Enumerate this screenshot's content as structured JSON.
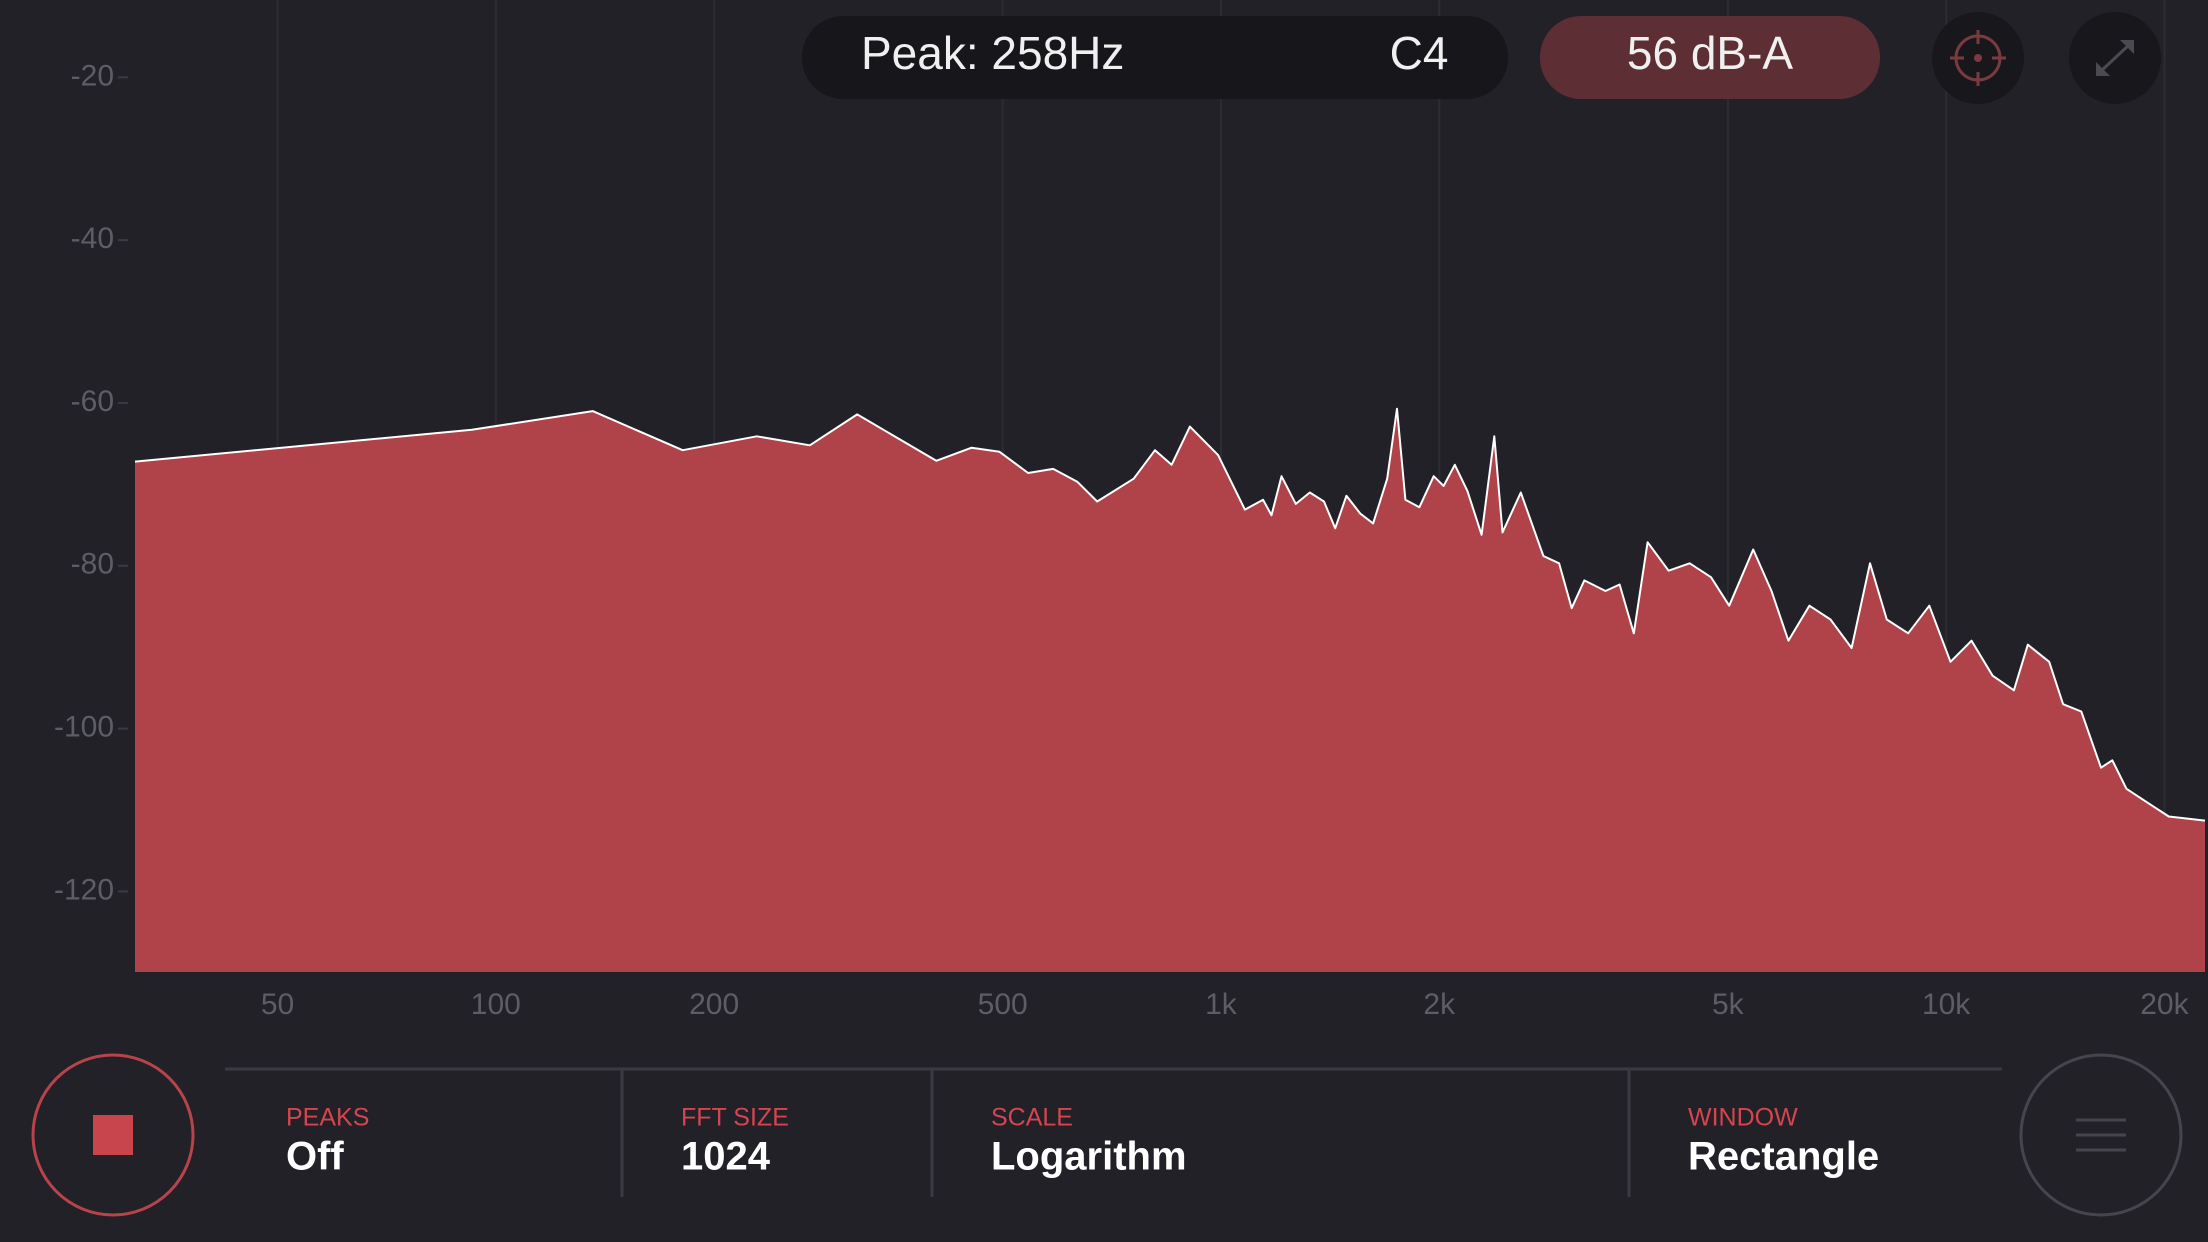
{
  "header": {
    "peak": "Peak: 258Hz",
    "note": "C4",
    "level": "56 dB-A"
  },
  "chart_data": {
    "type": "area",
    "x": [
      31.8,
      92.7,
      136,
      181,
      229,
      271,
      315,
      405,
      453,
      495,
      542,
      587,
      634,
      675,
      758,
      811,
      855,
      906,
      991,
      1079,
      1143,
      1174,
      1212,
      1268,
      1326,
      1387,
      1437,
      1489,
      1557,
      1621,
      1695,
      1749,
      1796,
      1878,
      1965,
      2028,
      2101,
      2187,
      2288,
      2382,
      2445,
      2591,
      2784,
      2926,
      3045,
      3170,
      3391,
      3546,
      3709,
      3875,
      4143,
      4430,
      4740,
      5022,
      5419,
      5743,
      6061,
      6479,
      6928,
      7408,
      7852,
      8283,
      8866,
      9479,
      10140,
      10840,
      11590,
      12400,
      12960,
      13870,
      14500,
      15360,
      15840,
      16350,
      16950,
      17730,
      18960,
      20280,
      22750
    ],
    "values": [
      -67.2,
      -63.3,
      -61.0,
      -65.8,
      -64.1,
      -65.2,
      -61.4,
      -67.1,
      -65.5,
      -66.0,
      -68.6,
      -68.1,
      -69.7,
      -72.1,
      -69.3,
      -65.8,
      -67.6,
      -62.9,
      -66.4,
      -73.1,
      -71.9,
      -73.8,
      -69.0,
      -72.4,
      -71.0,
      -72.1,
      -75.4,
      -71.4,
      -73.6,
      -74.8,
      -69.3,
      -60.7,
      -71.9,
      -72.8,
      -69.0,
      -70.2,
      -67.6,
      -70.8,
      -76.2,
      -64.1,
      -75.9,
      -71.0,
      -78.8,
      -79.7,
      -85.2,
      -81.8,
      -83.1,
      -82.3,
      -88.3,
      -77.1,
      -80.6,
      -79.7,
      -81.4,
      -84.9,
      -78.0,
      -83.1,
      -89.2,
      -84.9,
      -86.6,
      -90.1,
      -79.7,
      -86.6,
      -88.3,
      -84.9,
      -91.8,
      -89.2,
      -93.5,
      -95.3,
      -89.7,
      -91.8,
      -97.0,
      -97.9,
      -101.3,
      -104.8,
      -103.9,
      -107.4,
      -109.1,
      -110.8,
      -111.3
    ],
    "color": "#b0424a",
    "line_color": "#ffffff",
    "log_x": true,
    "xlim": [
      31.8,
      22750
    ],
    "ylim": [
      -129.9,
      -10.5
    ],
    "xticks": [
      50,
      100,
      200,
      500,
      {
        "value": 1000,
        "label": "1k"
      },
      {
        "value": 2000,
        "label": "2k"
      },
      {
        "value": 5000,
        "label": "5k"
      },
      {
        "value": 10000,
        "label": "10k"
      },
      {
        "value": 20000,
        "label": "20k"
      }
    ],
    "yticks": [
      -20,
      -40,
      -60,
      -80,
      -100,
      -120
    ],
    "grid": true
  },
  "controls": [
    {
      "label": "PEAKS",
      "value": "Off"
    },
    {
      "label": "FFT SIZE",
      "value": 1024
    },
    {
      "label": "SCALE",
      "value": "Logarithm"
    },
    {
      "label": "WINDOW",
      "value": "Rectangle"
    }
  ]
}
